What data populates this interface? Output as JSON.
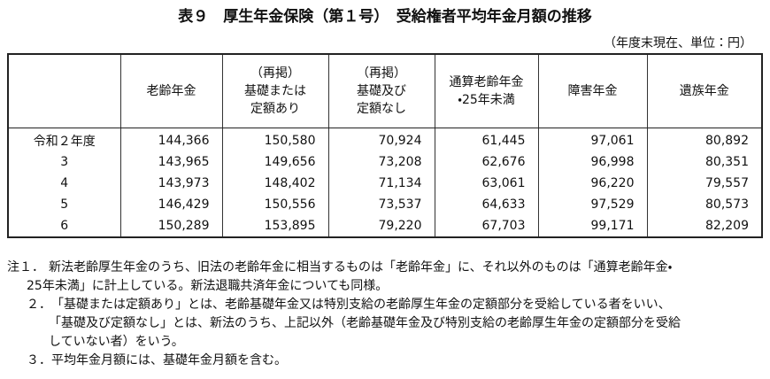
{
  "title": "表９　厚生年金保険（第１号）　受給権者平均年金月額の推移",
  "unit_note": "（年度末現在、単位：円）",
  "table": {
    "header": [
      [
        "老齢年金"
      ],
      [
        "（再掲）",
        "基礎または",
        "定額あり"
      ],
      [
        "（再掲）",
        "基礎及び",
        "定額なし"
      ],
      [
        "通算老齢年金",
        "・25年未満"
      ],
      [
        "障害年金"
      ],
      [
        "遺族年金"
      ]
    ],
    "rows": [
      [
        "令和２年度",
        "144,366",
        "150,580",
        "70,924",
        "61,445",
        "97,061",
        "80,892"
      ],
      [
        "3",
        "143,965",
        "149,656",
        "73,208",
        "62,676",
        "96,998",
        "80,351"
      ],
      [
        "4",
        "143,973",
        "148,402",
        "71,134",
        "63,061",
        "96,220",
        "79,557"
      ],
      [
        "5",
        "146,429",
        "150,556",
        "73,537",
        "64,633",
        "97,529",
        "80,573"
      ],
      [
        "6",
        "150,289",
        "153,895",
        "79,220",
        "67,703",
        "99,171",
        "82,209"
      ]
    ]
  },
  "notes": [
    {
      "marker": "注１．",
      "lines": [
        "新法老齢厚生年金のうち、旧法の老齢年金に相当するものは「老齢年金」に、それ以外のものは「通算老齢年金・",
        "25年未満」に計上している。新法退職共済年金についても同様。"
      ]
    },
    {
      "marker": "２．",
      "lines": [
        "「基礎または定額あり」とは、老齢基礎年金又は特別支給の老齢厚生年金の定額部分を受給している者をいい、",
        "「基礎及び定額なし」とは、新法のうち、上記以外（老齢基礎年金及び特別支給の老齢厚生年金の定額部分を受給",
        "していない者）をいう。"
      ]
    },
    {
      "marker": "３．",
      "lines": [
        "平均年金月額には、基礎年金月額を含む。"
      ]
    }
  ]
}
